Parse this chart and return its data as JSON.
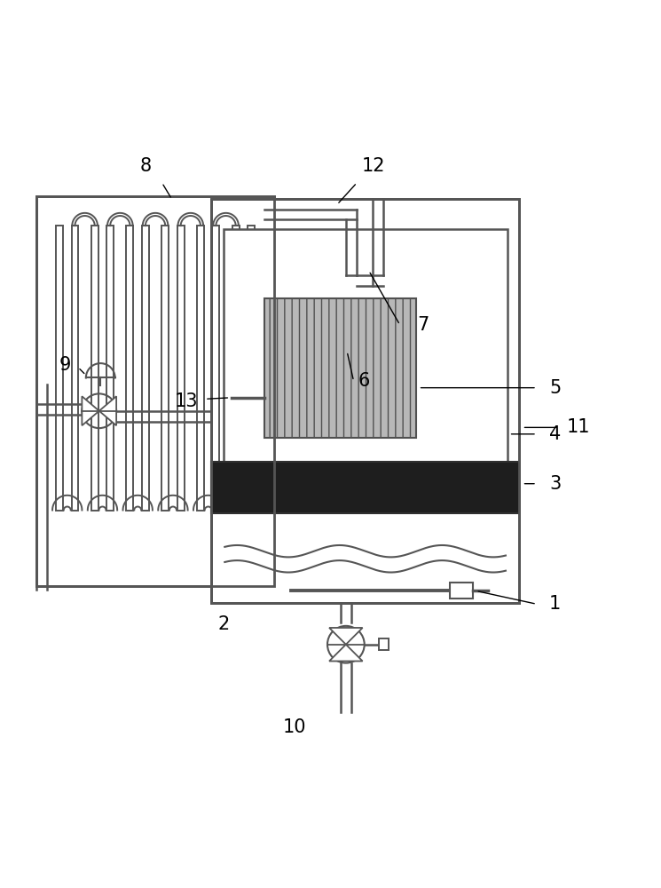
{
  "bg_color": "#ffffff",
  "lc": "#555555",
  "lw": 1.8,
  "label_fs": 15,
  "fig_w": 7.45,
  "fig_h": 10.0
}
